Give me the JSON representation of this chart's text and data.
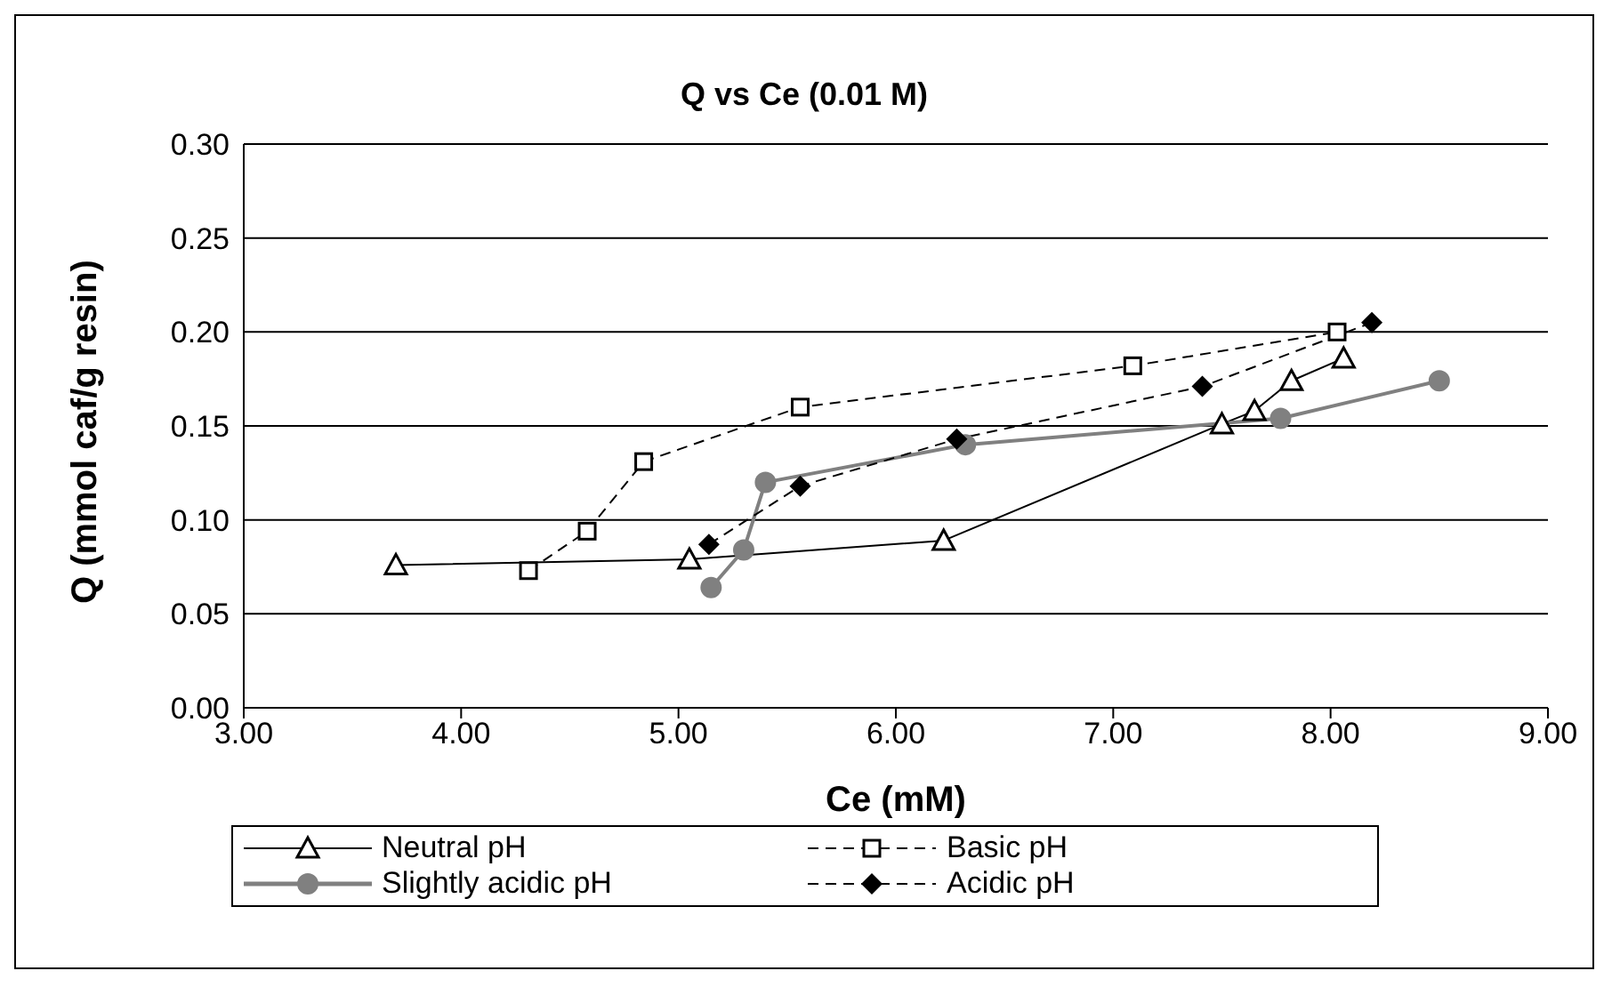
{
  "chart_data": {
    "type": "line",
    "title": "Q vs Ce (0.01 M)",
    "xlabel": "Ce (mM)",
    "ylabel": "Q (mmol caf/g resin)",
    "xlim": [
      3,
      9
    ],
    "xticks": [
      {
        "value": 3,
        "label": "3.00"
      },
      {
        "value": 4,
        "label": "4.00"
      },
      {
        "value": 5,
        "label": "5.00"
      },
      {
        "value": 6,
        "label": "6.00"
      },
      {
        "value": 7,
        "label": "7.00"
      },
      {
        "value": 8,
        "label": "8.00"
      },
      {
        "value": 9,
        "label": "9.00"
      }
    ],
    "ylim": [
      0,
      0.3
    ],
    "yticks": [
      {
        "value": 0,
        "label": "0.00"
      },
      {
        "value": 0.05,
        "label": "0.05"
      },
      {
        "value": 0.1,
        "label": "0.10"
      },
      {
        "value": 0.15,
        "label": "0.15"
      },
      {
        "value": 0.2,
        "label": "0.20"
      },
      {
        "value": 0.25,
        "label": "0.25"
      },
      {
        "value": 0.3,
        "label": "0.30"
      }
    ],
    "grid": "y",
    "legend": "bottom",
    "series": [
      {
        "name": "Neutral pH",
        "color": "#000000",
        "marker": "triangle",
        "line_style": "solid",
        "x": [
          3.7,
          5.05,
          6.22,
          7.5,
          7.65,
          7.82,
          8.06
        ],
        "values": [
          0.076,
          0.079,
          0.089,
          0.151,
          0.158,
          0.174,
          0.186
        ]
      },
      {
        "name": "Basic pH",
        "color": "#000000",
        "marker": "square",
        "line_style": "dashed",
        "x": [
          4.31,
          4.58,
          4.84,
          5.56,
          7.09,
          8.03
        ],
        "values": [
          0.073,
          0.094,
          0.131,
          0.16,
          0.182,
          0.2
        ]
      },
      {
        "name": "Slightly acidic pH",
        "color": "#808080",
        "marker": "circle",
        "line_style": "solid",
        "x": [
          5.15,
          5.3,
          5.4,
          6.32,
          7.77,
          8.5
        ],
        "values": [
          0.064,
          0.084,
          0.12,
          0.14,
          0.154,
          0.174
        ]
      },
      {
        "name": "Acidic pH",
        "color": "#000000",
        "marker": "diamond",
        "line_style": "dashed",
        "x": [
          5.14,
          5.56,
          6.28,
          7.41,
          8.19
        ],
        "values": [
          0.087,
          0.118,
          0.143,
          0.171,
          0.205
        ]
      }
    ]
  }
}
